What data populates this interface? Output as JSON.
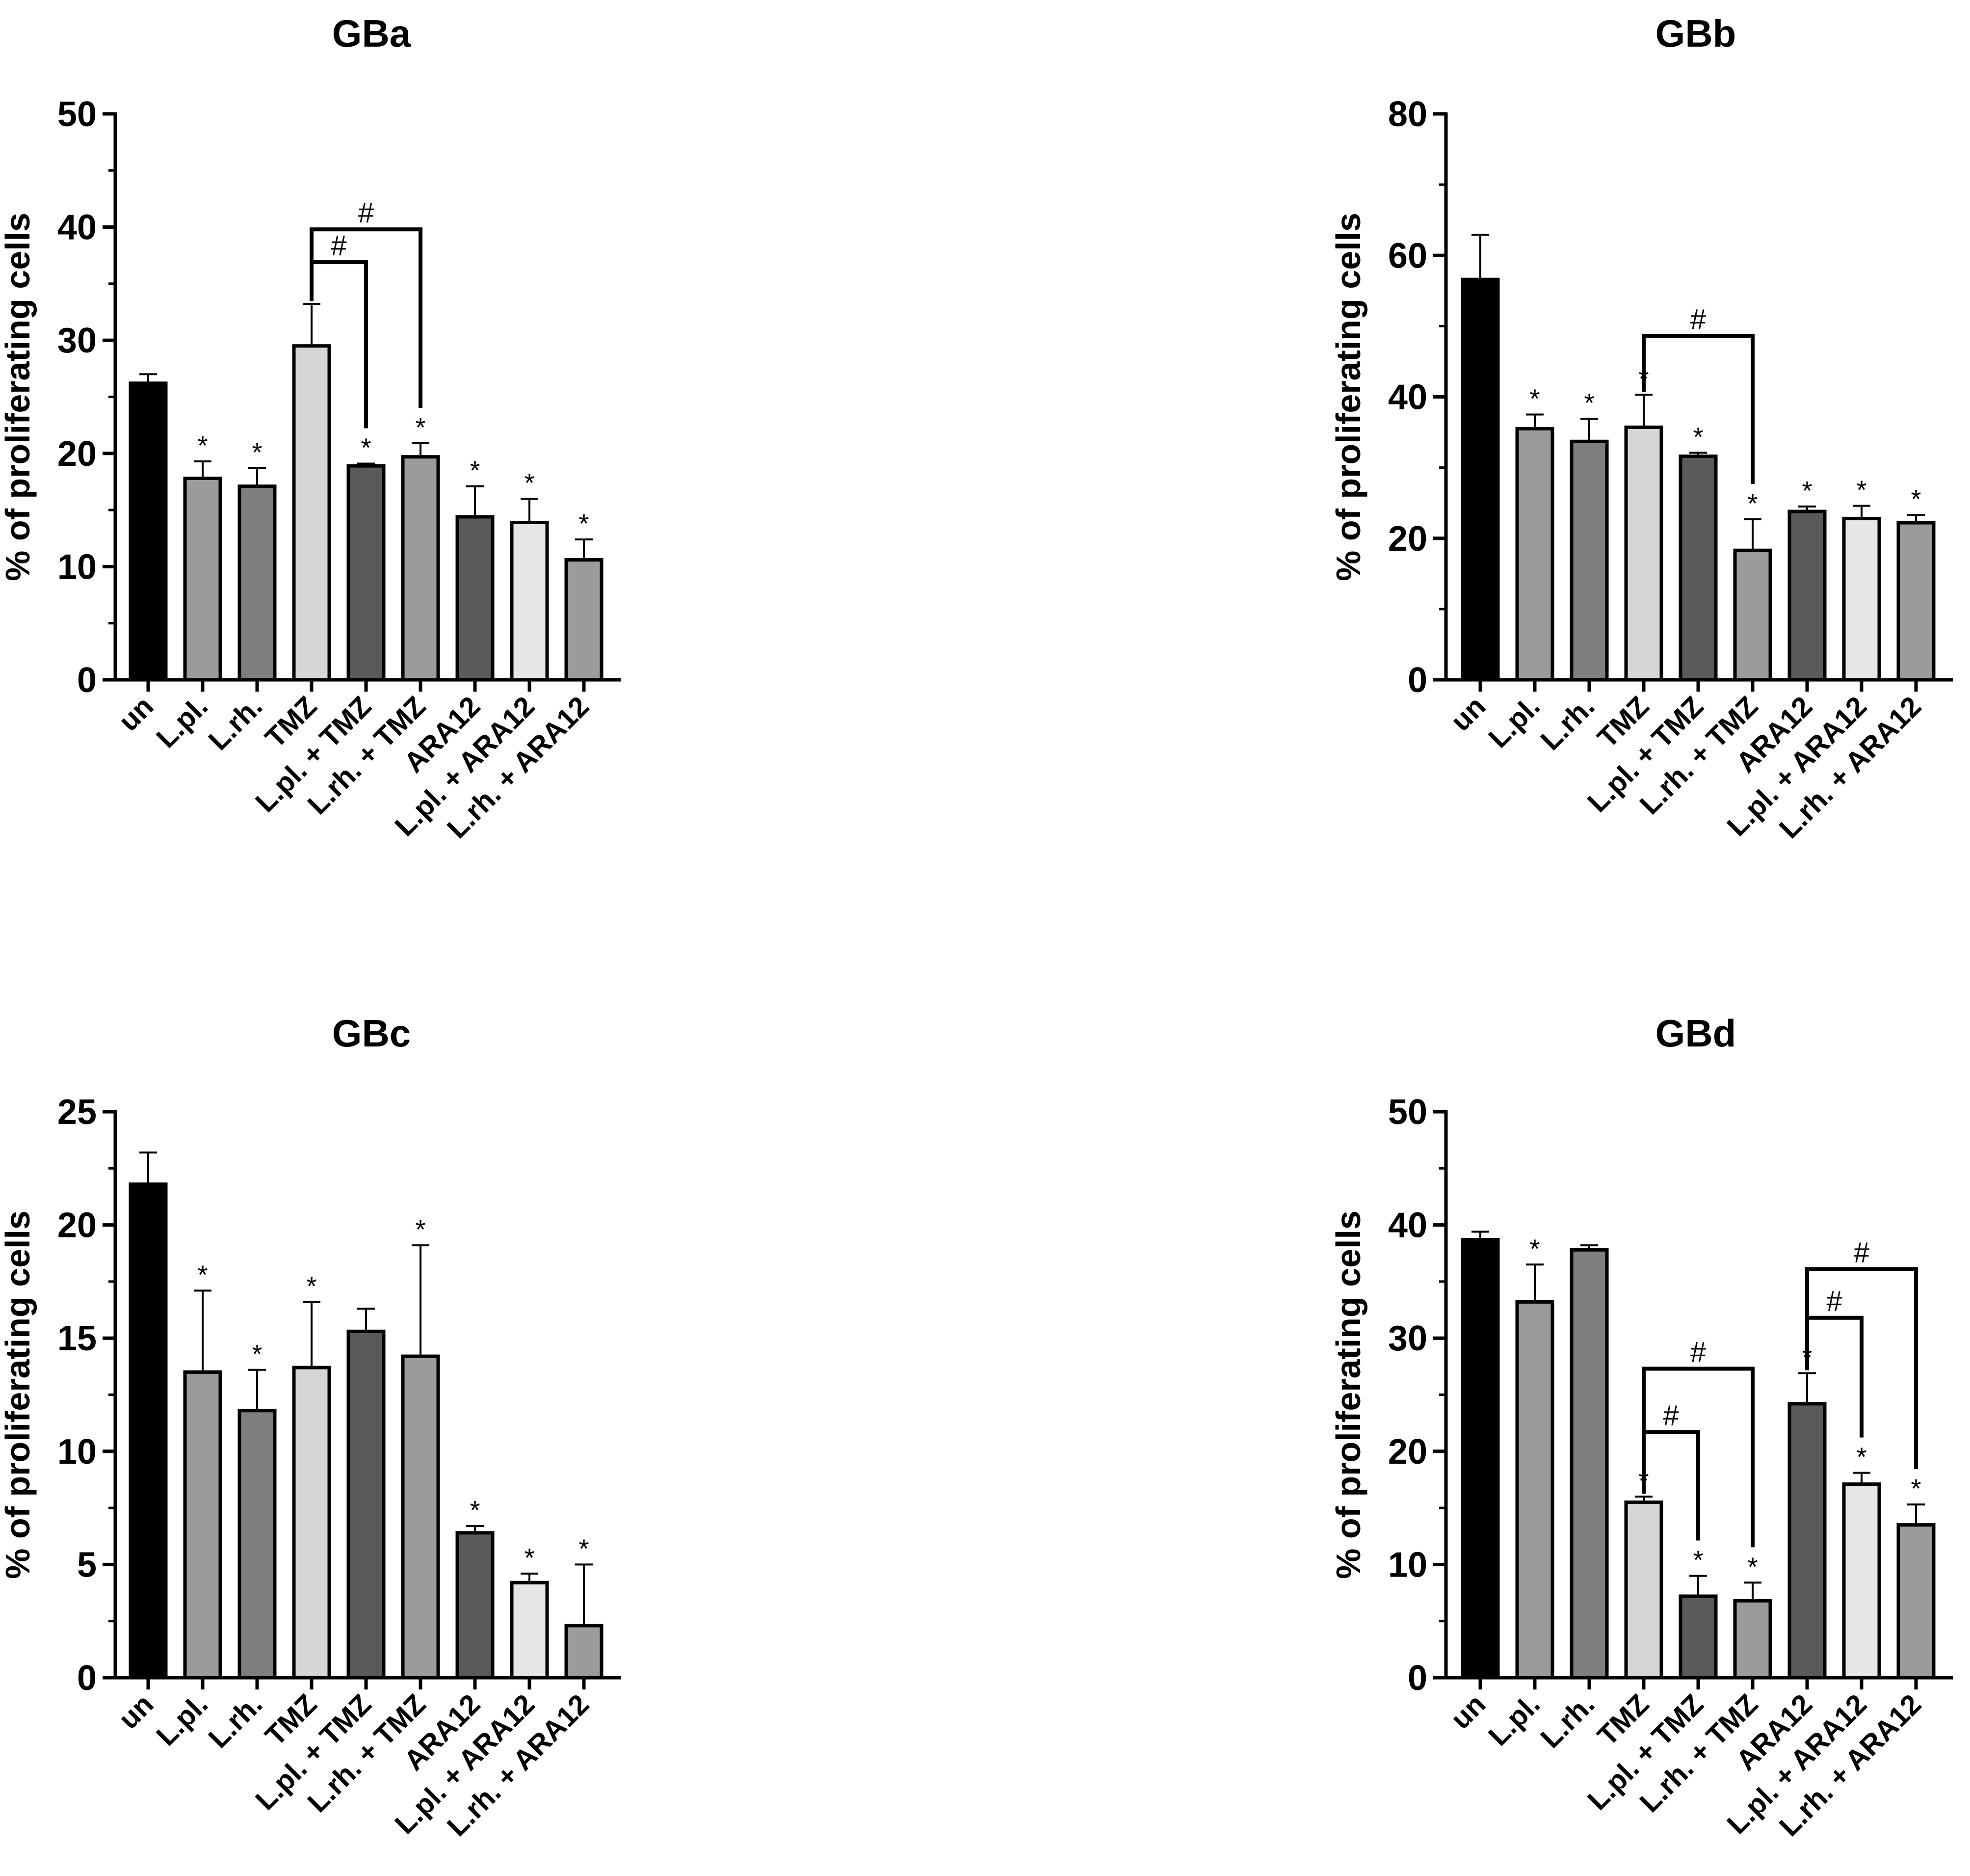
{
  "chart_data": [
    {
      "type": "bar",
      "title": "GBa",
      "xlabel": "",
      "ylabel": "% of proliferating cells",
      "ylim": [
        0,
        50
      ],
      "yticks": [
        0,
        10,
        20,
        30,
        40,
        50
      ],
      "categories": [
        "un",
        "L.pl.",
        "L.rh.",
        "TMZ",
        "L.pl. + TMZ",
        "L.rh. + TMZ",
        "ARA12",
        "L.pl. + ARA12",
        "L.rh. + ARA12"
      ],
      "values": [
        26.2,
        17.8,
        17.1,
        29.5,
        18.9,
        19.7,
        14.4,
        13.9,
        10.6
      ],
      "errors": [
        0.8,
        1.5,
        1.6,
        3.7,
        0.2,
        1.2,
        2.7,
        2.1,
        1.8
      ],
      "colors": [
        "#000000",
        "#9b9b9b",
        "#7e7e7e",
        "#d6d6d6",
        "#5a5a5a",
        "#9b9b9b",
        "#5a5a5a",
        "#e6e6e6",
        "#9b9b9b"
      ],
      "significance": [
        "",
        "*",
        "*",
        "",
        "*",
        "*",
        "*",
        "*",
        "*"
      ],
      "brackets": [
        {
          "from": 3,
          "to": 4,
          "y": 36.9,
          "label": "#"
        },
        {
          "from": 3,
          "to": 5,
          "y": 39.8,
          "label": "#"
        }
      ]
    },
    {
      "type": "bar",
      "title": "GBb",
      "xlabel": "",
      "ylabel": "% of proliferating cells",
      "ylim": [
        0,
        80
      ],
      "yticks": [
        0,
        20,
        40,
        60,
        80
      ],
      "categories": [
        "un",
        "L.pl.",
        "L.rh.",
        "TMZ",
        "L.pl. + TMZ",
        "L.rh. + TMZ",
        "ARA12",
        "L.pl. + ARA12",
        "L.rh. + ARA12"
      ],
      "values": [
        56.6,
        35.5,
        33.7,
        35.7,
        31.6,
        18.3,
        23.8,
        22.8,
        22.2
      ],
      "errors": [
        6.3,
        2.0,
        3.2,
        4.6,
        0.5,
        4.4,
        0.7,
        1.8,
        1.1
      ],
      "colors": [
        "#000000",
        "#9b9b9b",
        "#7e7e7e",
        "#d6d6d6",
        "#5a5a5a",
        "#9b9b9b",
        "#5a5a5a",
        "#e6e6e6",
        "#9b9b9b"
      ],
      "significance": [
        "",
        "*",
        "*",
        "*",
        "*",
        "*",
        "*",
        "*",
        "*"
      ],
      "brackets": [
        {
          "from": 3,
          "to": 5,
          "y": 48.6,
          "label": "#"
        }
      ]
    },
    {
      "type": "bar",
      "title": "GBc",
      "xlabel": "",
      "ylabel": "% of proliferating cells",
      "ylim": [
        0,
        25
      ],
      "yticks": [
        0,
        5,
        10,
        15,
        20,
        25
      ],
      "categories": [
        "un",
        "L.pl.",
        "L.rh.",
        "TMZ",
        "L.pl. + TMZ",
        "L.rh. + TMZ",
        "ARA12",
        "L.pl. + ARA12",
        "L.rh. + ARA12"
      ],
      "values": [
        21.8,
        13.5,
        11.8,
        13.7,
        15.3,
        14.2,
        6.4,
        4.2,
        2.3
      ],
      "errors": [
        1.4,
        3.6,
        1.8,
        2.9,
        1.0,
        4.9,
        0.3,
        0.4,
        2.7
      ],
      "colors": [
        "#000000",
        "#9b9b9b",
        "#7e7e7e",
        "#d6d6d6",
        "#5a5a5a",
        "#9b9b9b",
        "#5a5a5a",
        "#e6e6e6",
        "#9b9b9b"
      ],
      "significance": [
        "",
        "*",
        "*",
        "*",
        "",
        "*",
        "*",
        "*",
        "*"
      ],
      "brackets": []
    },
    {
      "type": "bar",
      "title": "GBd",
      "xlabel": "",
      "ylabel": "% of proliferating cells",
      "ylim": [
        0,
        50
      ],
      "yticks": [
        0,
        10,
        20,
        30,
        40,
        50
      ],
      "categories": [
        "un",
        "L.pl.",
        "L.rh.",
        "TMZ",
        "L.pl. + TMZ",
        "L.rh. + TMZ",
        "ARA12",
        "L.pl. + ARA12",
        "L.rh. + ARA12"
      ],
      "values": [
        38.7,
        33.2,
        37.8,
        15.5,
        7.2,
        6.8,
        24.2,
        17.1,
        13.5
      ],
      "errors": [
        0.7,
        3.3,
        0.4,
        0.5,
        1.8,
        1.6,
        2.7,
        1.0,
        1.8
      ],
      "colors": [
        "#000000",
        "#9b9b9b",
        "#7e7e7e",
        "#d6d6d6",
        "#5a5a5a",
        "#9b9b9b",
        "#5a5a5a",
        "#e6e6e6",
        "#9b9b9b"
      ],
      "significance": [
        "",
        "*",
        "",
        "*",
        "*",
        "*",
        "*",
        "*",
        "*"
      ],
      "brackets": [
        {
          "from": 3,
          "to": 4,
          "y": 21.7,
          "label": "#"
        },
        {
          "from": 3,
          "to": 5,
          "y": 27.3,
          "label": "#"
        },
        {
          "from": 6,
          "to": 7,
          "y": 31.8,
          "label": "#"
        },
        {
          "from": 6,
          "to": 8,
          "y": 36.1,
          "label": "#"
        }
      ]
    }
  ]
}
